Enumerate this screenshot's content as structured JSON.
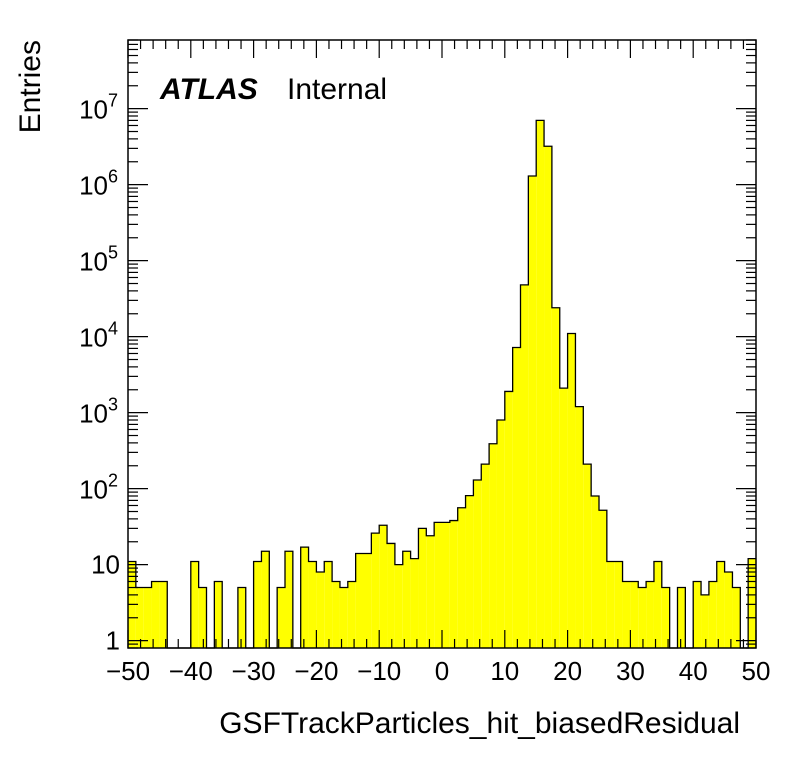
{
  "chart_data": {
    "type": "bar",
    "title": "",
    "xlabel": "GSFTrackParticles_hit_biasedResidual",
    "ylabel": "Entries",
    "xlim": [
      -50,
      50
    ],
    "ylim": [
      0.8,
      80000000
    ],
    "yscale": "log",
    "bin_width": 1.25,
    "fill_color": "#ffff00",
    "edge_color": "#000000",
    "annotations": {
      "experiment": "ATLAS",
      "status": "Internal"
    },
    "x_ticks": [
      -50,
      -40,
      -30,
      -20,
      -10,
      0,
      10,
      20,
      30,
      40,
      50
    ],
    "x_tick_labels": [
      "−50",
      "−40",
      "−30",
      "−20",
      "−10",
      "0",
      "10",
      "20",
      "30",
      "40",
      "50"
    ],
    "y_ticks": [
      {
        "value": 1,
        "base": "1",
        "exp": ""
      },
      {
        "value": 10,
        "base": "10",
        "exp": ""
      },
      {
        "value": 100,
        "base": "10",
        "exp": "2"
      },
      {
        "value": 1000,
        "base": "10",
        "exp": "3"
      },
      {
        "value": 10000,
        "base": "10",
        "exp": "4"
      },
      {
        "value": 100000,
        "base": "10",
        "exp": "5"
      },
      {
        "value": 1000000,
        "base": "10",
        "exp": "6"
      },
      {
        "value": 10000000,
        "base": "10",
        "exp": "7"
      }
    ],
    "bin_starts": [
      -50.0,
      -48.75,
      -47.5,
      -46.25,
      -45.0,
      -43.75,
      -42.5,
      -41.25,
      -40.0,
      -38.75,
      -37.5,
      -36.25,
      -35.0,
      -33.75,
      -32.5,
      -31.25,
      -30.0,
      -28.75,
      -27.5,
      -26.25,
      -25.0,
      -23.75,
      -22.5,
      -21.25,
      -20.0,
      -18.75,
      -17.5,
      -16.25,
      -15.0,
      -13.75,
      -12.5,
      -11.25,
      -10.0,
      -8.75,
      -7.5,
      -6.25,
      -5.0,
      -3.75,
      -2.5,
      -1.25,
      0.0,
      1.25,
      2.5,
      3.75,
      5.0,
      6.25,
      7.5,
      8.75,
      10.0,
      11.25,
      12.5,
      13.75,
      15.0,
      16.25,
      17.5,
      18.75,
      20.0,
      21.25,
      22.5,
      23.75,
      25.0,
      26.25,
      27.5,
      28.75,
      30.0,
      31.25,
      32.5,
      33.75,
      35.0,
      36.25,
      37.5,
      38.75,
      40.0,
      41.25,
      42.5,
      43.75,
      45.0,
      46.25,
      47.5,
      48.75
    ],
    "values": [
      11,
      5,
      5,
      6,
      6,
      0,
      0,
      0,
      11,
      5,
      0,
      6,
      0,
      0,
      5,
      0,
      11,
      15,
      0,
      5,
      15,
      0,
      17,
      11,
      8,
      11,
      6,
      5,
      6,
      14,
      14,
      26,
      33,
      19,
      10,
      15,
      12,
      30,
      24,
      36,
      36,
      38,
      56,
      81,
      130,
      210,
      390,
      800,
      1900,
      7200,
      48000,
      1300000,
      7000000,
      3200000,
      24000,
      2100,
      11000,
      1200,
      210,
      80,
      52,
      11,
      11,
      6,
      6,
      5,
      6,
      11,
      5,
      0,
      5,
      0,
      6,
      4,
      6,
      11,
      8,
      5,
      0,
      12
    ]
  }
}
